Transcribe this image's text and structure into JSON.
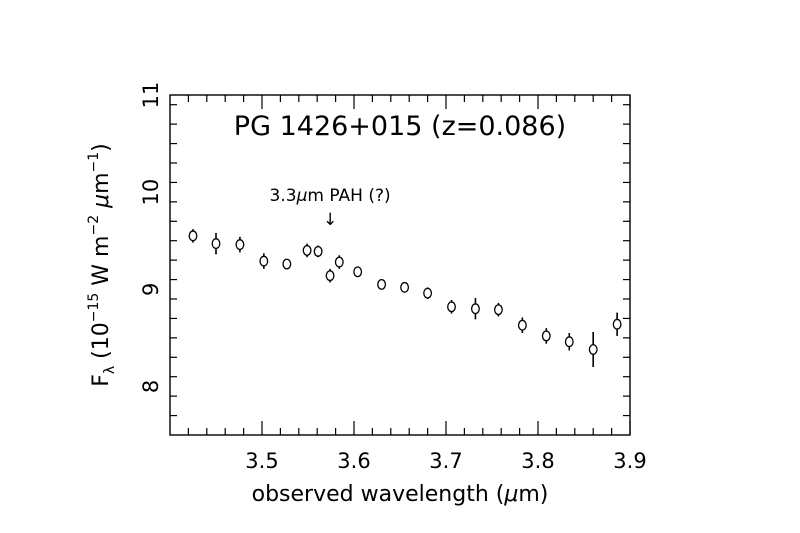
{
  "chart_data": {
    "type": "scatter",
    "title": "PG 1426+015 (z=0.086)",
    "xlabel": {
      "pre": "observed wavelength (",
      "mu": "μ",
      "post": "m)"
    },
    "ylabel": {
      "F": "F",
      "lambda": "λ",
      "open": " (10",
      "exp1": "−15",
      "mid": " W m",
      "exp2": "−2",
      "mu": " μ",
      "m": "m",
      "exp3": "−1",
      "close": ")"
    },
    "xlim": [
      3.4,
      3.9
    ],
    "ylim": [
      7.5,
      11
    ],
    "xticks": [
      "3.5",
      "3.6",
      "3.7",
      "3.8",
      "3.9"
    ],
    "yticks": [
      "8",
      "9",
      "10",
      "11"
    ],
    "annotation": {
      "text_pre": "3.3",
      "text_mu": "μ",
      "text_post": "m PAH (?)",
      "x": 3.574,
      "arrow_symbol": "↓"
    },
    "points": [
      {
        "x": 3.425,
        "y": 9.55,
        "err": 0.07
      },
      {
        "x": 3.45,
        "y": 9.47,
        "err": 0.11
      },
      {
        "x": 3.476,
        "y": 9.46,
        "err": 0.08
      },
      {
        "x": 3.502,
        "y": 9.29,
        "err": 0.08
      },
      {
        "x": 3.527,
        "y": 9.26,
        "err": 0.04
      },
      {
        "x": 3.549,
        "y": 9.4,
        "err": 0.07
      },
      {
        "x": 3.561,
        "y": 9.39,
        "err": 0.06
      },
      {
        "x": 3.574,
        "y": 9.14,
        "err": 0.07
      },
      {
        "x": 3.584,
        "y": 9.28,
        "err": 0.07
      },
      {
        "x": 3.604,
        "y": 9.18,
        "err": 0.05
      },
      {
        "x": 3.63,
        "y": 9.05,
        "err": 0.04
      },
      {
        "x": 3.655,
        "y": 9.02,
        "err": 0.05
      },
      {
        "x": 3.68,
        "y": 8.96,
        "err": 0.06
      },
      {
        "x": 3.706,
        "y": 8.82,
        "err": 0.07
      },
      {
        "x": 3.732,
        "y": 8.8,
        "err": 0.11
      },
      {
        "x": 3.757,
        "y": 8.79,
        "err": 0.07
      },
      {
        "x": 3.783,
        "y": 8.63,
        "err": 0.08
      },
      {
        "x": 3.809,
        "y": 8.52,
        "err": 0.08
      },
      {
        "x": 3.834,
        "y": 8.46,
        "err": 0.09
      },
      {
        "x": 3.86,
        "y": 8.38,
        "err": 0.18
      },
      {
        "x": 3.886,
        "y": 8.64,
        "err": 0.12
      }
    ]
  }
}
